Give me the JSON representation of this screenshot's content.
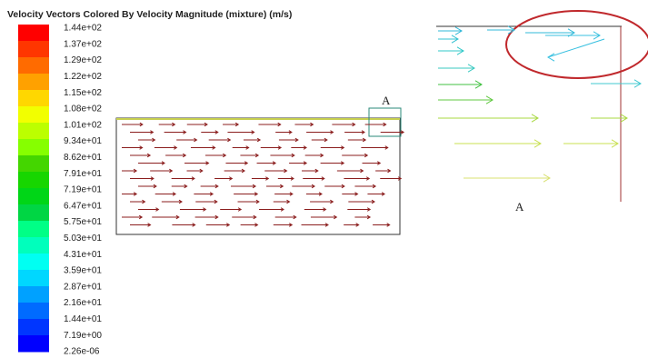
{
  "title": "Velocity Vectors Colored By Velocity Magnitude (mixture)  (m/s)",
  "colorbar": {
    "labels": [
      "1.44e+02",
      "1.37e+02",
      "1.29e+02",
      "1.22e+02",
      "1.15e+02",
      "1.08e+02",
      "1.01e+02",
      "9.34e+01",
      "8.62e+01",
      "7.91e+01",
      "7.19e+01",
      "6.47e+01",
      "5.75e+01",
      "5.03e+01",
      "4.31e+01",
      "3.59e+01",
      "2.87e+01",
      "2.16e+01",
      "1.44e+01",
      "7.19e+00",
      "2.26e-06"
    ]
  },
  "callouts": {
    "domain_label": "A",
    "zoom_label": "A"
  }
}
